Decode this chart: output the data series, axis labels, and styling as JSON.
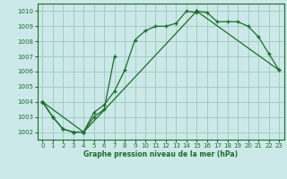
{
  "title": "Graphe pression niveau de la mer (hPa)",
  "background_color": "#cce8e8",
  "grid_color": "#99ccbb",
  "line_color": "#1a6e2a",
  "xlim": [
    -0.5,
    23.5
  ],
  "ylim": [
    1001.5,
    1010.5
  ],
  "xticks": [
    0,
    1,
    2,
    3,
    4,
    5,
    6,
    7,
    8,
    9,
    10,
    11,
    12,
    13,
    14,
    15,
    16,
    17,
    18,
    19,
    20,
    21,
    22,
    23
  ],
  "yticks": [
    1002,
    1003,
    1004,
    1005,
    1006,
    1007,
    1008,
    1009,
    1010
  ],
  "series1_x": [
    0,
    1,
    2,
    3,
    4,
    5,
    6,
    7,
    8,
    9,
    10,
    11,
    12,
    13,
    14,
    15
  ],
  "series1_y": [
    1004.0,
    1003.0,
    1002.2,
    1002.0,
    1002.0,
    1003.3,
    1003.8,
    1004.7,
    1006.1,
    1008.1,
    1008.7,
    1009.0,
    1009.0,
    1009.2,
    1010.0,
    1009.9
  ],
  "series2_x": [
    0,
    1,
    2,
    3,
    4,
    5,
    6,
    7,
    15,
    16,
    17,
    18,
    19,
    20,
    21,
    22,
    23
  ],
  "series2_y": [
    1004.0,
    1003.0,
    1002.2,
    1002.0,
    1002.0,
    1003.0,
    1003.5,
    1007.0,
    1010.0,
    1009.9,
    1009.3,
    1009.3,
    1009.3,
    1009.0,
    1008.3,
    1007.2,
    1006.1
  ],
  "series3_x": [
    0,
    4,
    15,
    23
  ],
  "series3_y": [
    1004.0,
    1002.0,
    1010.0,
    1006.1
  ],
  "title_fontsize": 6.5,
  "tick_fontsize": 5,
  "xlabel_fontsize": 5.5
}
